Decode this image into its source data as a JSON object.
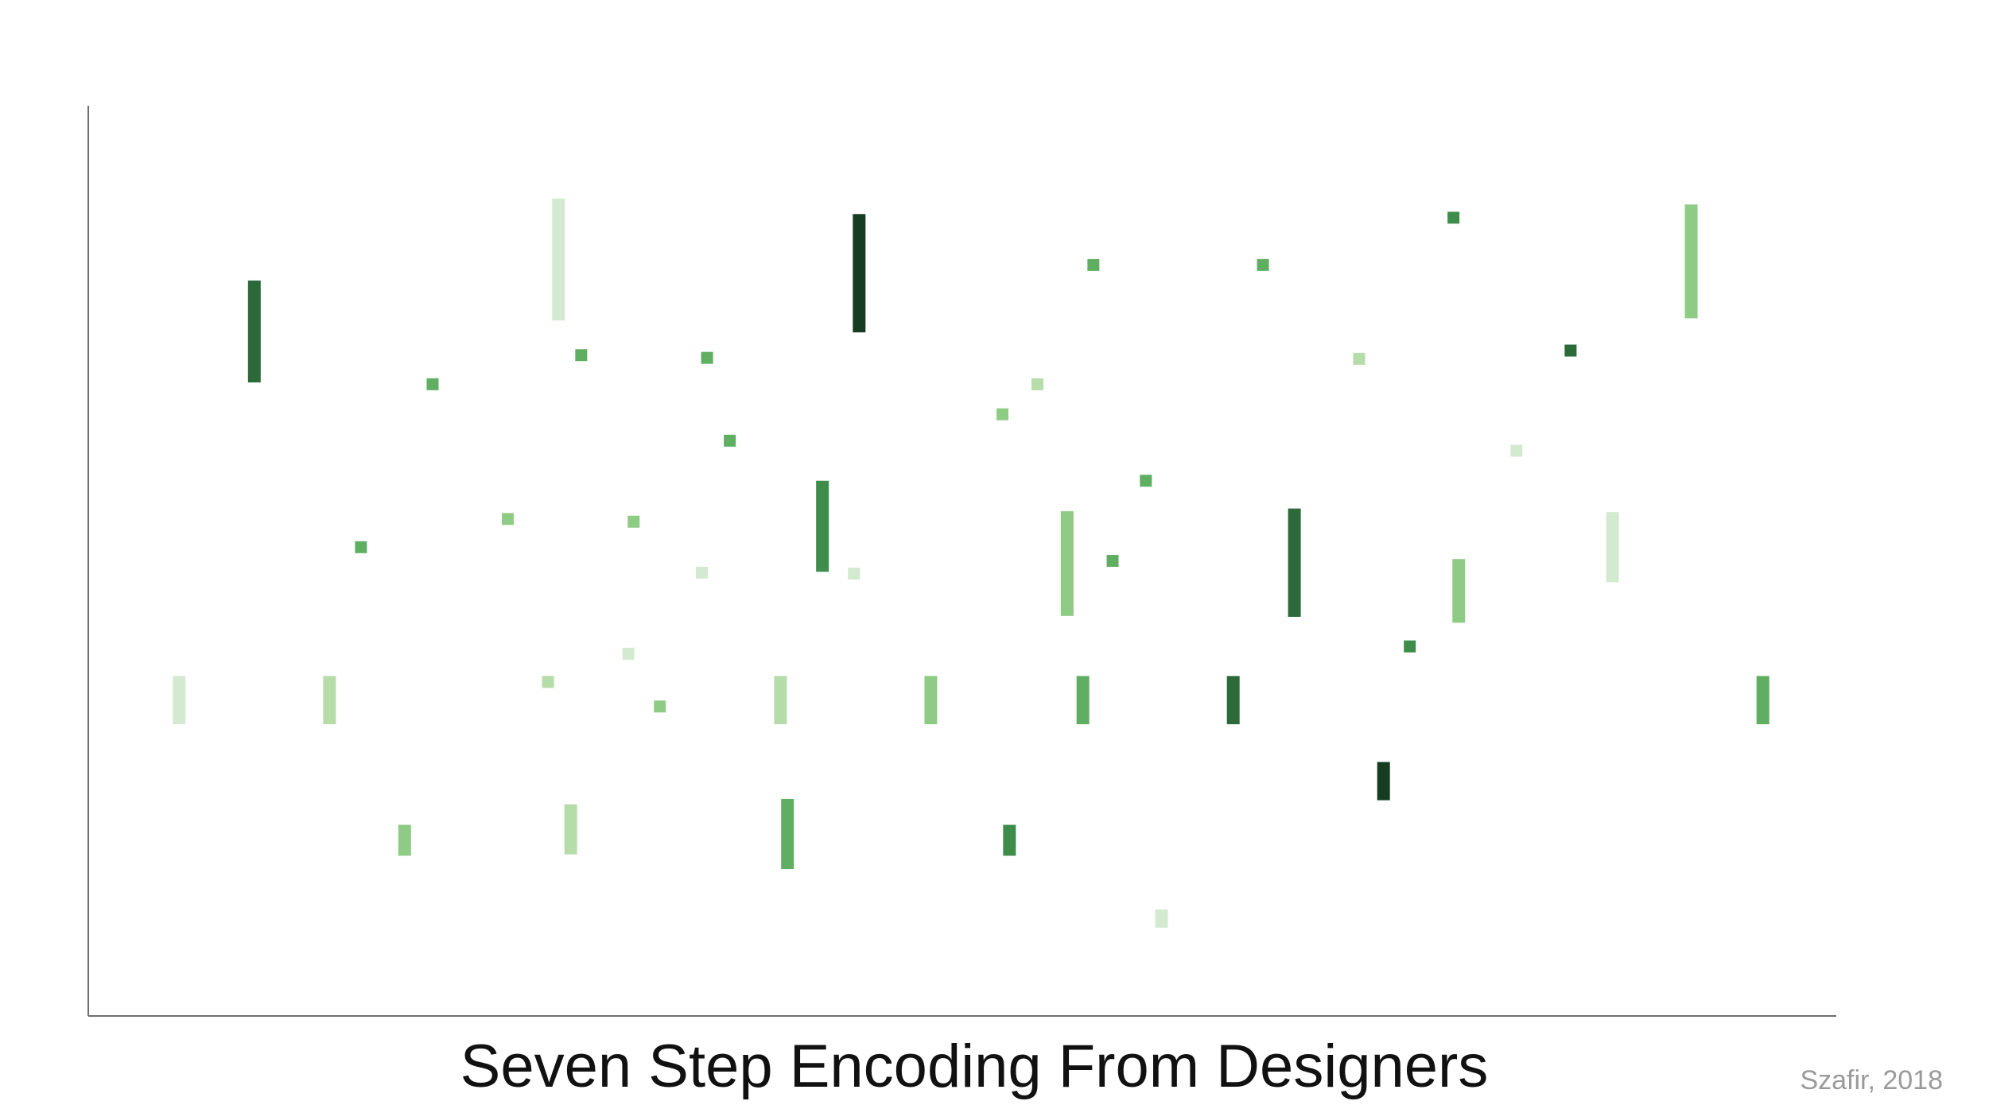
{
  "caption": "Seven Step Encoding From Designers",
  "credit": "Szafir, 2018",
  "chart_data": {
    "type": "scatter",
    "title": "Seven Step Encoding From Designers",
    "xlabel": "",
    "ylabel": "",
    "xlim": [
      0,
      1000
    ],
    "ylim": [
      0,
      1000
    ],
    "grid": false,
    "legend": "none",
    "encoding": "seven-step sequential green color ramp",
    "palette": [
      "#d4ead0",
      "#b5dca9",
      "#8ecb85",
      "#5fae62",
      "#3f8d4b",
      "#2c6b39",
      "#163d22"
    ],
    "series": [
      {
        "name": "",
        "points": [
          {
            "x": 269,
            "y": 831,
            "h": 134,
            "step": 1
          },
          {
            "x": 441,
            "y": 816,
            "h": 130,
            "step": 7
          },
          {
            "x": 95,
            "y": 752,
            "h": 112,
            "step": 6
          },
          {
            "x": 917,
            "y": 829,
            "h": 125,
            "step": 3
          },
          {
            "x": 781,
            "y": 877,
            "h": 0,
            "step": 5
          },
          {
            "x": 575,
            "y": 825,
            "h": 0,
            "step": 4
          },
          {
            "x": 672,
            "y": 825,
            "h": 0,
            "step": 4
          },
          {
            "x": 848,
            "y": 731,
            "h": 0,
            "step": 6
          },
          {
            "x": 197,
            "y": 694,
            "h": 0,
            "step": 4
          },
          {
            "x": 282,
            "y": 726,
            "h": 0,
            "step": 4
          },
          {
            "x": 354,
            "y": 723,
            "h": 0,
            "step": 4
          },
          {
            "x": 727,
            "y": 722,
            "h": 0,
            "step": 2
          },
          {
            "x": 543,
            "y": 694,
            "h": 0,
            "step": 2
          },
          {
            "x": 523,
            "y": 661,
            "h": 0,
            "step": 3
          },
          {
            "x": 367,
            "y": 632,
            "h": 0,
            "step": 4
          },
          {
            "x": 817,
            "y": 621,
            "h": 0,
            "step": 1
          },
          {
            "x": 605,
            "y": 588,
            "h": 0,
            "step": 4
          },
          {
            "x": 156,
            "y": 515,
            "h": 0,
            "step": 4
          },
          {
            "x": 240,
            "y": 546,
            "h": 0,
            "step": 3
          },
          {
            "x": 312,
            "y": 543,
            "h": 0,
            "step": 3
          },
          {
            "x": 351,
            "y": 487,
            "h": 0,
            "step": 1
          },
          {
            "x": 438,
            "y": 486,
            "h": 0,
            "step": 1
          },
          {
            "x": 586,
            "y": 500,
            "h": 0,
            "step": 4
          },
          {
            "x": 420,
            "y": 538,
            "h": 100,
            "step": 5
          },
          {
            "x": 560,
            "y": 497,
            "h": 115,
            "step": 3
          },
          {
            "x": 690,
            "y": 498,
            "h": 119,
            "step": 6
          },
          {
            "x": 784,
            "y": 467,
            "h": 70,
            "step": 3
          },
          {
            "x": 872,
            "y": 515,
            "h": 77,
            "step": 1
          },
          {
            "x": 309,
            "y": 398,
            "h": 0,
            "step": 1
          },
          {
            "x": 263,
            "y": 367,
            "h": 0,
            "step": 2
          },
          {
            "x": 327,
            "y": 340,
            "h": 0,
            "step": 3
          },
          {
            "x": 756,
            "y": 406,
            "h": 0,
            "step": 5
          },
          {
            "x": 52,
            "y": 347,
            "h": 53,
            "step": 1
          },
          {
            "x": 138,
            "y": 347,
            "h": 53,
            "step": 2
          },
          {
            "x": 396,
            "y": 347,
            "h": 53,
            "step": 2
          },
          {
            "x": 482,
            "y": 347,
            "h": 53,
            "step": 3
          },
          {
            "x": 569,
            "y": 347,
            "h": 53,
            "step": 4
          },
          {
            "x": 655,
            "y": 347,
            "h": 53,
            "step": 6
          },
          {
            "x": 958,
            "y": 347,
            "h": 53,
            "step": 4
          },
          {
            "x": 741,
            "y": 258,
            "h": 42,
            "step": 7
          },
          {
            "x": 181,
            "y": 193,
            "h": 34,
            "step": 3
          },
          {
            "x": 276,
            "y": 205,
            "h": 55,
            "step": 2
          },
          {
            "x": 400,
            "y": 200,
            "h": 77,
            "step": 4
          },
          {
            "x": 527,
            "y": 193,
            "h": 34,
            "step": 5
          },
          {
            "x": 614,
            "y": 107,
            "h": 20,
            "step": 1
          }
        ]
      }
    ]
  }
}
